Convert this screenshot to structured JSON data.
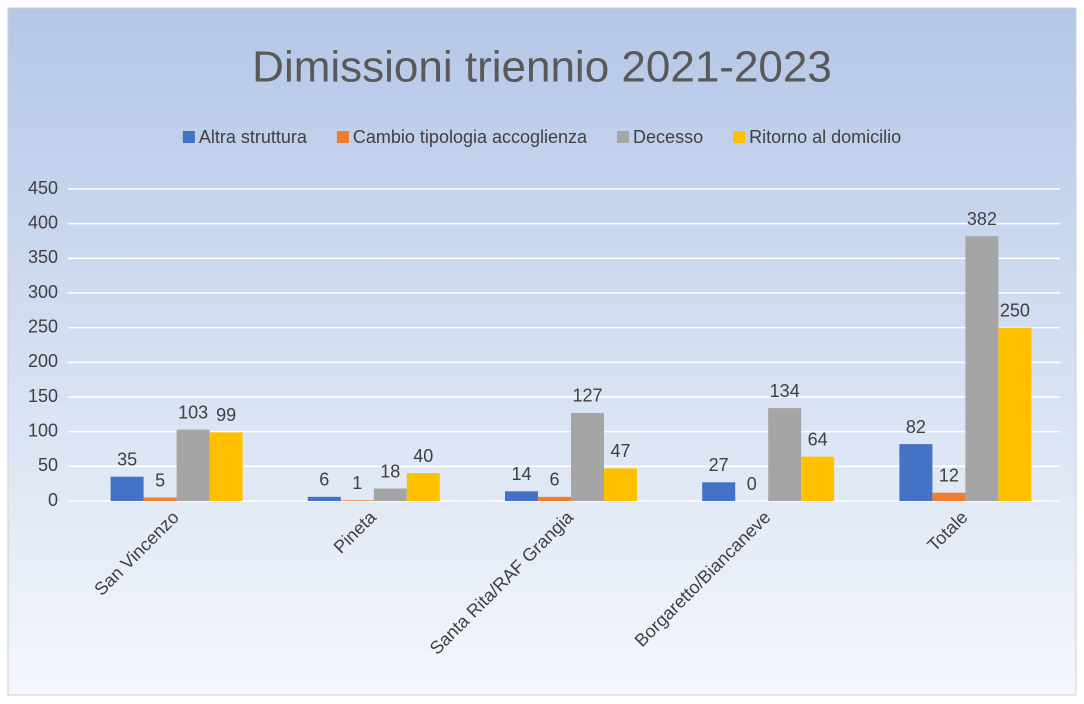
{
  "chart_data": {
    "type": "bar",
    "title": "Dimissioni triennio 2021-2023",
    "categories": [
      "San Vincenzo",
      "Pineta",
      "Santa Rita/RAF Grangia",
      "Borgaretto/Biancaneve",
      "Totale"
    ],
    "series": [
      {
        "name": "Altra struttura",
        "color": "#4472c4",
        "values": [
          35,
          6,
          14,
          27,
          82
        ]
      },
      {
        "name": "Cambio tipologia accoglienza",
        "color": "#ed7d31",
        "values": [
          5,
          1,
          6,
          0,
          12
        ]
      },
      {
        "name": "Decesso",
        "color": "#a5a5a5",
        "values": [
          103,
          18,
          127,
          134,
          382
        ]
      },
      {
        "name": "Ritorno al domicilio",
        "color": "#ffc000",
        "values": [
          99,
          40,
          47,
          64,
          250
        ]
      }
    ],
    "ylim": [
      0,
      450
    ],
    "yticks": [
      0,
      50,
      100,
      150,
      200,
      250,
      300,
      350,
      400,
      450
    ],
    "grid": true,
    "legend": "top"
  }
}
